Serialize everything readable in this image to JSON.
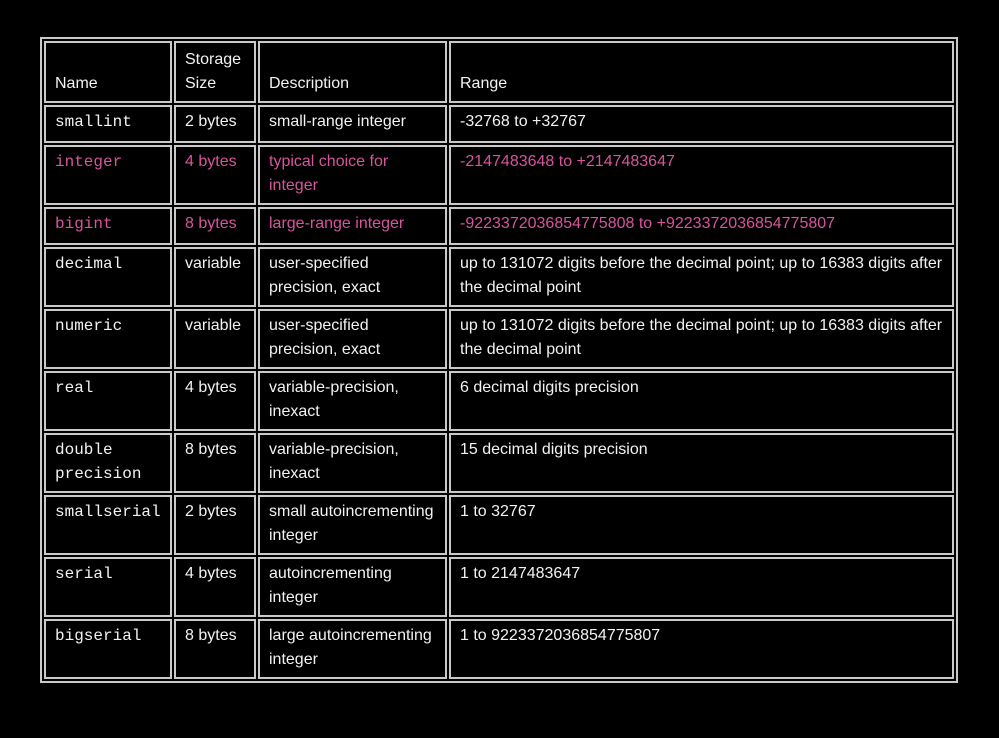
{
  "colors": {
    "background": "#000000",
    "text": "#f2f2f2",
    "border": "#c9c9c9",
    "highlight": "#d8549e"
  },
  "table": {
    "columns": {
      "name": "Name",
      "storage": "Storage Size",
      "description": "Description",
      "range": "Range"
    },
    "rows": [
      {
        "name": "smallint",
        "storage": "2 bytes",
        "description": "small-range integer",
        "range": "-32768 to +32767",
        "highlighted": false
      },
      {
        "name": "integer",
        "storage": "4 bytes",
        "description": "typical choice for integer",
        "range": "-2147483648 to +2147483647",
        "highlighted": true
      },
      {
        "name": "bigint",
        "storage": "8 bytes",
        "description": "large-range integer",
        "range": "-9223372036854775808 to +9223372036854775807",
        "highlighted": true
      },
      {
        "name": "decimal",
        "storage": "variable",
        "description": "user-specified precision, exact",
        "range": "up to 131072 digits before the decimal point; up to 16383 digits after the decimal point",
        "highlighted": false
      },
      {
        "name": "numeric",
        "storage": "variable",
        "description": "user-specified precision, exact",
        "range": "up to 131072 digits before the decimal point; up to 16383 digits after the decimal point",
        "highlighted": false
      },
      {
        "name": "real",
        "storage": "4 bytes",
        "description": "variable-precision, inexact",
        "range": "6 decimal digits precision",
        "highlighted": false
      },
      {
        "name": "double precision",
        "storage": "8 bytes",
        "description": "variable-precision, inexact",
        "range": "15 decimal digits precision",
        "highlighted": false
      },
      {
        "name": "smallserial",
        "storage": "2 bytes",
        "description": "small autoincrementing integer",
        "range": "1 to 32767",
        "highlighted": false
      },
      {
        "name": "serial",
        "storage": "4 bytes",
        "description": "autoincrementing integer",
        "range": "1 to 2147483647",
        "highlighted": false
      },
      {
        "name": "bigserial",
        "storage": "8 bytes",
        "description": "large autoincrementing integer",
        "range": "1 to 9223372036854775807",
        "highlighted": false
      }
    ]
  }
}
